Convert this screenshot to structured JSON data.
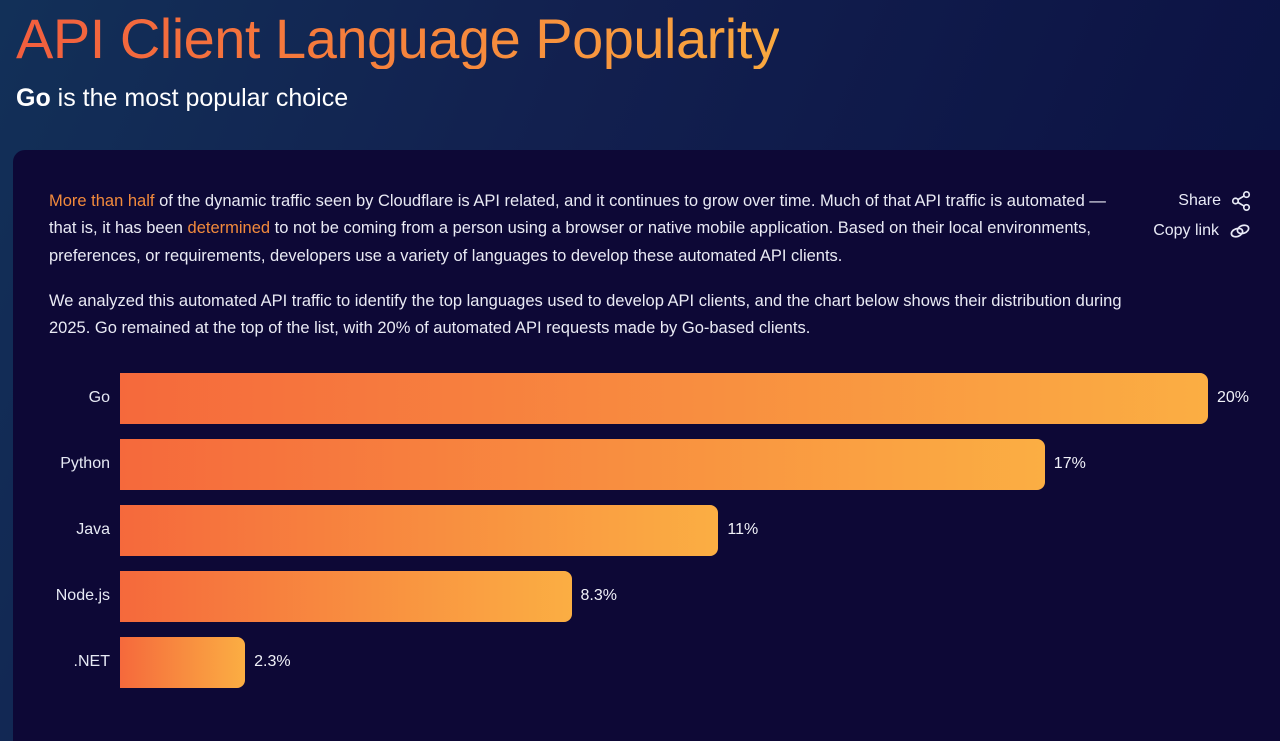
{
  "page": {
    "title": "API Client Language Popularity",
    "subtitle_strong": "Go",
    "subtitle_rest": " is the most popular choice"
  },
  "card": {
    "paragraph1": {
      "link1": "More than half",
      "text1": " of the dynamic traffic seen by Cloudflare is API related, and it continues to grow over time. Much of that API traffic is automated — that is, it has been ",
      "link2": "determined",
      "text2": " to not be coming from a person using a browser or native mobile application. Based on their local environments, preferences, or requirements, developers use a variety of languages to develop these automated API clients."
    },
    "paragraph2": "We analyzed this automated API traffic to identify the top languages used to develop API clients, and the chart below shows their distribution during 2025. Go remained at the top of the list, with 20% of automated API requests made by Go-based clients.",
    "actions": {
      "share_label": "Share",
      "copy_link_label": "Copy link",
      "share_icon": "share-nodes-icon",
      "copy_link_icon": "chain-link-icon"
    }
  },
  "chart_data": {
    "type": "bar",
    "orientation": "horizontal",
    "title": "API Client Language Popularity",
    "categories": [
      "Go",
      "Python",
      "Java",
      "Node.js",
      ".NET"
    ],
    "values": [
      20,
      17,
      11,
      8.3,
      2.3
    ],
    "value_labels": [
      "20%",
      "17%",
      "11%",
      "8.3%",
      "2.3%"
    ],
    "xlabel": "",
    "ylabel": "",
    "xlim": [
      0,
      20
    ],
    "grid": false,
    "legend": "none",
    "bar_gradient": [
      "#f5693c",
      "#fbae43"
    ]
  },
  "colors": {
    "accent_link_orange": "#f28a3c",
    "title_gradient_start": "#f25e3e",
    "title_gradient_end": "#f9a83f",
    "bar_gradient_start": "#f5693c",
    "bar_gradient_end": "#fbae43",
    "card_background": "#0d0836",
    "page_background": "#112a54",
    "text_light": "#e9eaf4"
  }
}
